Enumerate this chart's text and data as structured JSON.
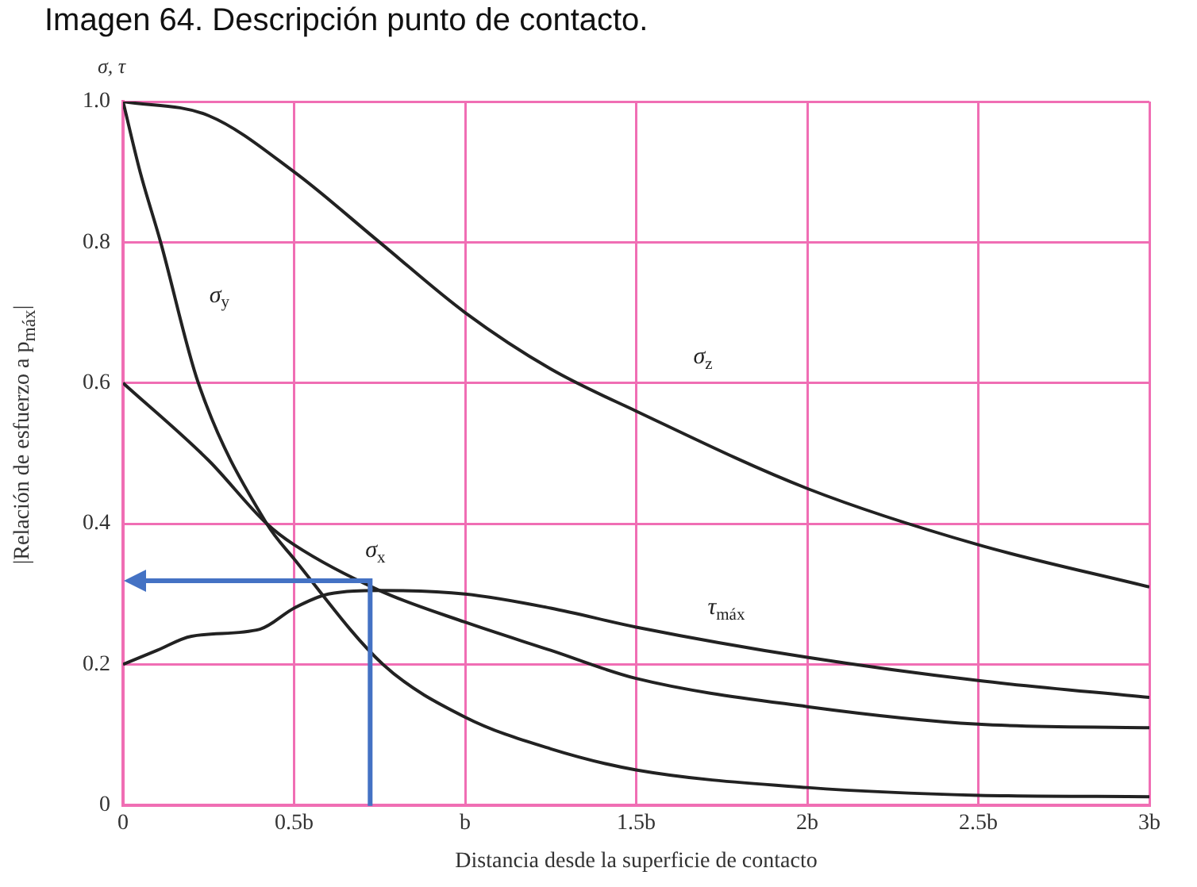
{
  "chart_data": {
    "type": "line",
    "title": "Imagen 64. Descripción punto de contacto.",
    "xlabel": "Distancia desde la superficie de contacto",
    "ylabel": "|Relación de esfuerzo a p$_{máx}$|",
    "xlim": [
      0,
      3
    ],
    "ylim": [
      0,
      1
    ],
    "xticks": [
      0,
      {
        "value": 0.5,
        "label": "0.5b"
      },
      {
        "value": 1,
        "label": "b"
      },
      {
        "value": 1.5,
        "label": "1.5b"
      },
      {
        "value": 2,
        "label": "2b"
      },
      {
        "value": 2.5,
        "label": "2.5b"
      },
      {
        "value": 3,
        "label": "3b"
      }
    ],
    "yticks": [
      0,
      0.2,
      0.4,
      0.6,
      0.8,
      {
        "value": 1,
        "label": "1.0"
      }
    ],
    "grid": true,
    "legend": false,
    "marker": "none",
    "series": [
      {
        "name": "σ$_{z}$",
        "color": "#222222",
        "x": [
          0,
          0.25,
          0.5,
          0.75,
          1,
          1.25,
          1.5,
          2,
          2.5,
          3
        ],
        "values": [
          1.0,
          0.98,
          0.9,
          0.8,
          0.7,
          0.62,
          0.56,
          0.45,
          0.37,
          0.31
        ]
      },
      {
        "name": "σ$_{y}$",
        "color": "#222222",
        "x": [
          0,
          0.05,
          0.11,
          0.22,
          0.42,
          0.5,
          0.76,
          1,
          1.25,
          1.5,
          2,
          2.5,
          3
        ],
        "values": [
          1.0,
          0.9,
          0.8,
          0.6,
          0.4,
          0.35,
          0.2,
          0.125,
          0.08,
          0.05,
          0.025,
          0.014,
          0.012
        ]
      },
      {
        "name": "σ$_{x}$",
        "color": "#222222",
        "x": [
          0,
          0.25,
          0.42,
          0.5,
          0.75,
          1,
          1.25,
          1.5,
          2,
          2.5,
          3
        ],
        "values": [
          0.6,
          0.49,
          0.4,
          0.37,
          0.305,
          0.26,
          0.22,
          0.18,
          0.14,
          0.115,
          0.11
        ]
      },
      {
        "name": "τ$_{máx}$",
        "color": "#222222",
        "x": [
          0,
          0.1,
          0.2,
          0.4,
          0.5,
          0.6,
          0.75,
          1,
          1.25,
          1.5,
          2,
          2.5,
          3
        ],
        "values": [
          0.2,
          0.22,
          0.24,
          0.25,
          0.28,
          0.3,
          0.305,
          0.3,
          0.28,
          0.253,
          0.21,
          0.177,
          0.153
        ]
      }
    ],
    "annotations": [
      "σ, τ"
    ]
  }
}
